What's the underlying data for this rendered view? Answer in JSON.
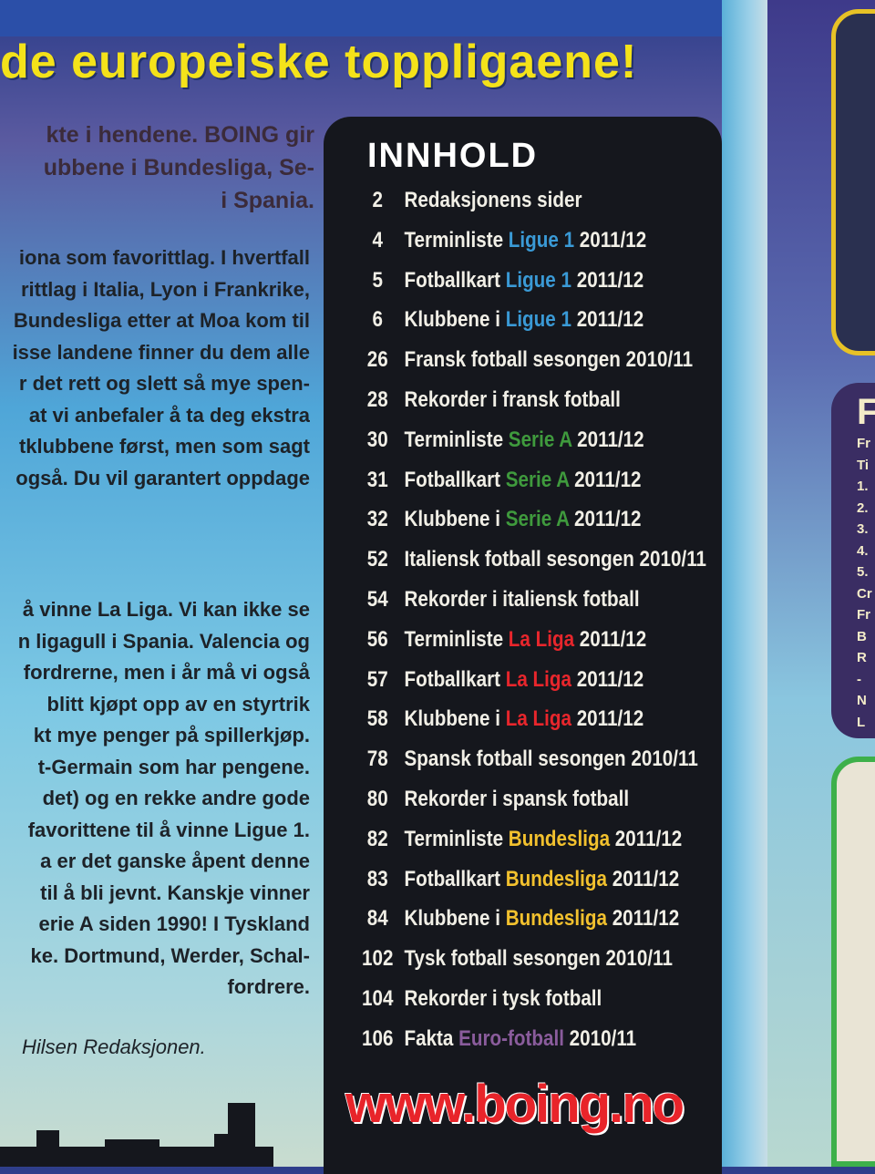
{
  "header": {
    "tagline": "de europeiske toppligaene!"
  },
  "intro": [
    "kte i hendene. BOING gir",
    "ubbene i Bundesliga, Se-",
    "i Spania."
  ],
  "body1": [
    "iona som favorittlag. I hvertfall",
    "rittlag i Italia, Lyon i Frankrike,",
    "Bundesliga etter at Moa kom til",
    "isse landene finner du dem alle",
    "r det rett og slett så mye spen-",
    "at vi anbefaler å ta deg ekstra",
    "tklubbene først, men som sagt",
    "også. Du vil garantert oppdage"
  ],
  "body2": [
    "å vinne La Liga. Vi kan ikke se",
    "n ligagull i Spania. Valencia og",
    "fordrerne, men i år må vi også",
    "blitt kjøpt opp av en styrtrik",
    "kt mye penger på spillerkjøp.",
    "t-Germain som har pengene.",
    "det) og en rekke andre gode",
    "favorittene til å vinne Ligue 1.",
    "a er det ganske åpent denne",
    "til å bli jevnt. Kanskje vinner",
    "erie A siden 1990! I Tyskland",
    "ke. Dortmund, Werder, Schal-",
    "fordrere."
  ],
  "signature": "Hilsen Redaksjonen.",
  "toc": {
    "title": "INNHOLD",
    "colors": {
      "Ligue 1": "#3a9ad6",
      "Serie A": "#3f9a3d",
      "La Liga": "#e8262c",
      "Bundesliga": "#f2c12e",
      "Euro-fotball": "#8a5c9c"
    },
    "items": [
      {
        "page": "2",
        "pre": "Redaksjonens sider",
        "league": "",
        "post": ""
      },
      {
        "page": "4",
        "pre": "Terminliste ",
        "league": "Ligue 1",
        "post": " 2011/12"
      },
      {
        "page": "5",
        "pre": "Fotballkart ",
        "league": "Ligue 1",
        "post": " 2011/12"
      },
      {
        "page": "6",
        "pre": "Klubbene i ",
        "league": "Ligue 1",
        "post": " 2011/12"
      },
      {
        "page": "26",
        "pre": "Fransk fotball sesongen 2010/11",
        "league": "",
        "post": ""
      },
      {
        "page": "28",
        "pre": "Rekorder i fransk fotball",
        "league": "",
        "post": ""
      },
      {
        "page": "30",
        "pre": "Terminliste ",
        "league": "Serie A",
        "post": " 2011/12"
      },
      {
        "page": "31",
        "pre": "Fotballkart ",
        "league": "Serie A",
        "post": " 2011/12"
      },
      {
        "page": "32",
        "pre": "Klubbene i ",
        "league": "Serie A",
        "post": " 2011/12"
      },
      {
        "page": "52",
        "pre": "Italiensk fotball sesongen 2010/11",
        "league": "",
        "post": ""
      },
      {
        "page": "54",
        "pre": "Rekorder i italiensk fotball",
        "league": "",
        "post": ""
      },
      {
        "page": "56",
        "pre": "Terminliste ",
        "league": "La Liga",
        "post": " 2011/12"
      },
      {
        "page": "57",
        "pre": "Fotballkart ",
        "league": "La Liga",
        "post": " 2011/12"
      },
      {
        "page": "58",
        "pre": "Klubbene i ",
        "league": "La Liga",
        "post": " 2011/12"
      },
      {
        "page": "78",
        "pre": "Spansk fotball sesongen 2010/11",
        "league": "",
        "post": ""
      },
      {
        "page": "80",
        "pre": "Rekorder i spansk fotball",
        "league": "",
        "post": ""
      },
      {
        "page": "82",
        "pre": "Terminliste ",
        "league": "Bundesliga",
        "post": " 2011/12"
      },
      {
        "page": "83",
        "pre": "Fotballkart ",
        "league": "Bundesliga",
        "post": " 2011/12"
      },
      {
        "page": "84",
        "pre": "Klubbene i ",
        "league": "Bundesliga",
        "post": " 2011/12"
      },
      {
        "page": "102",
        "pre": "Tysk fotball sesongen 2010/11",
        "league": "",
        "post": ""
      },
      {
        "page": "104",
        "pre": "Rekorder i tysk fotball",
        "league": "",
        "post": ""
      },
      {
        "page": "106",
        "pre": "Fakta ",
        "league": "Euro-fotball",
        "post": " 2010/11"
      }
    ],
    "url": "www.boing.no"
  },
  "right_page": {
    "heading": "F",
    "lines": [
      "Fr",
      "Ti",
      "1.",
      "2.",
      "3.",
      "4.",
      "5.",
      "Cr",
      "Fr",
      "B",
      "R",
      "-",
      "N",
      "L"
    ]
  }
}
